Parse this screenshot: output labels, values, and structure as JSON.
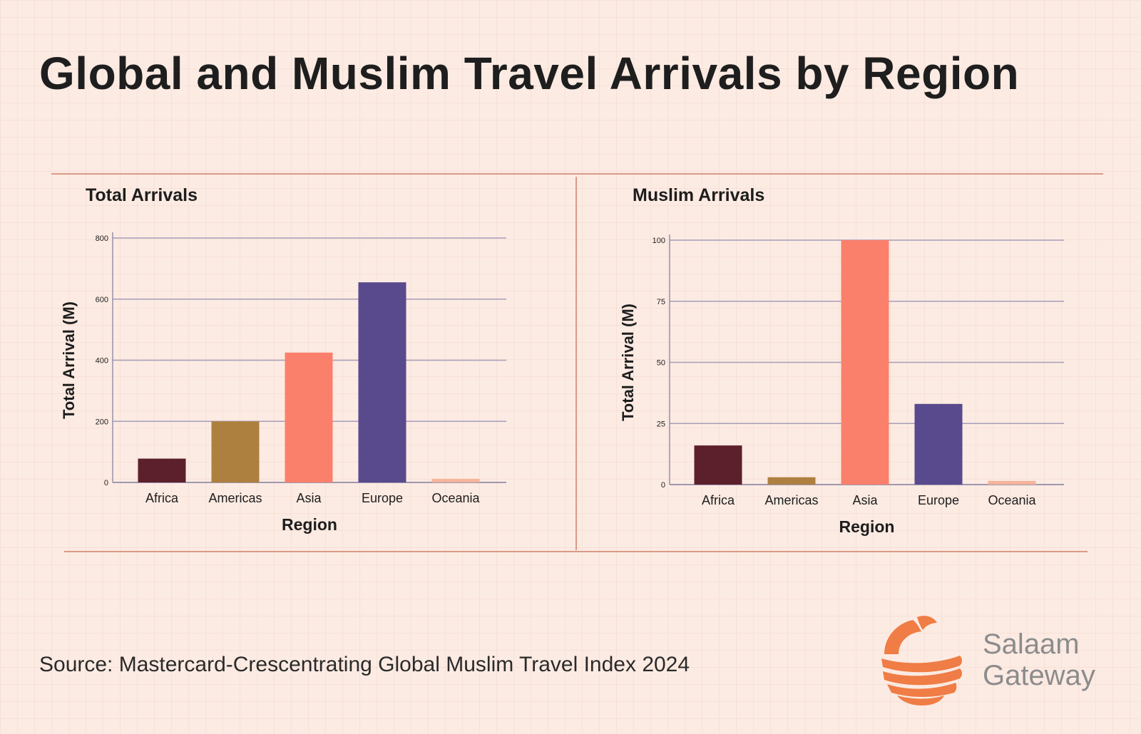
{
  "title": "Global and Muslim Travel Arrivals by Region",
  "source": "Source: Mastercard-Crescentrating Global Muslim Travel Index 2024",
  "logo": {
    "line1": "Salaam",
    "line2": "Gateway",
    "accent": "#ef7d45"
  },
  "colors": {
    "Africa": "#5c1f2c",
    "Americas": "#ae803f",
    "Asia": "#fb806b",
    "Europe": "#584a8c",
    "Oceania": "#f5b49b",
    "gridline": "#a49eb8",
    "rule": "#d99a88"
  },
  "chart_data": [
    {
      "type": "bar",
      "title": "Total Arrivals",
      "xlabel": "Region",
      "ylabel": "Total Arrival (M)",
      "categories": [
        "Africa",
        "Americas",
        "Asia",
        "Europe",
        "Oceania"
      ],
      "values": [
        78,
        200,
        425,
        655,
        12
      ],
      "ylim": [
        0,
        800
      ],
      "yticks": [
        0,
        200,
        400,
        600,
        800
      ],
      "grid": true
    },
    {
      "type": "bar",
      "title": "Muslim Arrivals",
      "xlabel": "Region",
      "ylabel": "Total Arrival (M)",
      "categories": [
        "Africa",
        "Americas",
        "Asia",
        "Europe",
        "Oceania"
      ],
      "values": [
        16,
        3,
        100,
        33,
        1.5
      ],
      "ylim": [
        0,
        100
      ],
      "yticks": [
        0,
        25,
        50,
        75,
        100
      ],
      "grid": true
    }
  ]
}
